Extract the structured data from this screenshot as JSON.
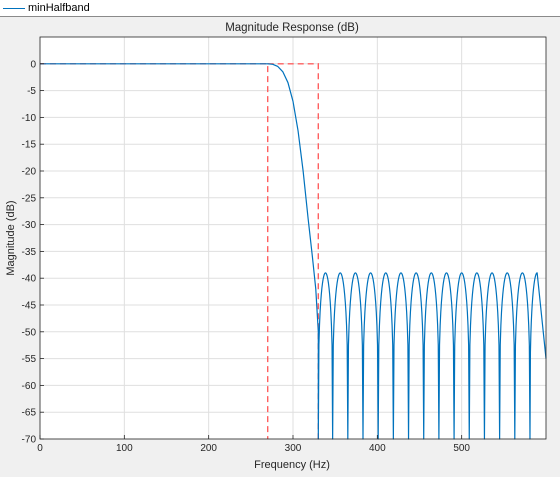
{
  "legend": {
    "entries": [
      {
        "name": "minHalfband",
        "color": "#0072bd"
      }
    ]
  },
  "chart_data": {
    "type": "line",
    "title": "Magnitude Response (dB)",
    "xlabel": "Frequency (Hz)",
    "ylabel": "Magnitude (dB)",
    "xlim": [
      0,
      600
    ],
    "ylim": [
      -70,
      5
    ],
    "x_ticks": [
      0,
      100,
      200,
      300,
      400,
      500
    ],
    "y_ticks": [
      0,
      -5,
      -10,
      -15,
      -20,
      -25,
      -30,
      -35,
      -40,
      -45,
      -50,
      -55,
      -60,
      -65,
      -70
    ],
    "grid": true,
    "legend_placement": "top-left",
    "series": [
      {
        "name": "minHalfband",
        "color": "#0072bd",
        "passband": {
          "x": [
            0,
            270
          ],
          "y": [
            0,
            0
          ]
        },
        "transition": {
          "x": [
            270,
            276,
            282,
            288,
            294,
            300,
            306,
            312,
            318,
            323,
            327,
            330
          ],
          "y": [
            0,
            -0.1,
            -0.5,
            -1.5,
            -3.5,
            -7,
            -12.5,
            -20,
            -29,
            -36,
            -42,
            -50
          ]
        },
        "stopband": {
          "peak_level": -39,
          "nulls": [
            330,
            347,
            365,
            383,
            401,
            419,
            437,
            455,
            473,
            491,
            509,
            527,
            545,
            563,
            581
          ],
          "null_level": -70,
          "end": {
            "x": 600,
            "y": -55
          }
        }
      }
    ],
    "mask": {
      "color": "#ff6060",
      "style": "dashed",
      "passband_edge": 270,
      "stopband_edge": 330,
      "passband_level": 0,
      "stopband_level": -40
    }
  }
}
